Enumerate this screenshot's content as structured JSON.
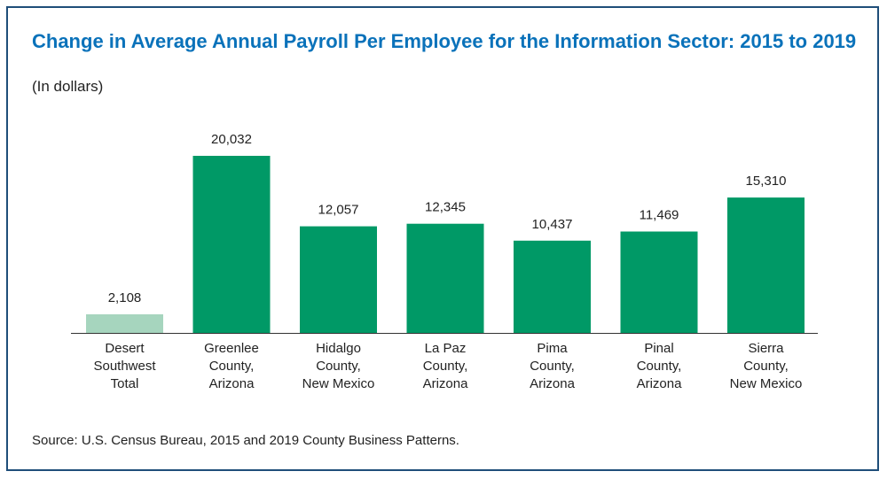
{
  "title": "Change in Average Annual Payroll Per Employee for the Information Sector: 2015 to 2019",
  "subtitle": "(In dollars)",
  "source": "Source: U.S. Census Bureau, 2015 and 2019 County Business Patterns.",
  "colors": {
    "highlight": "#a6d5be",
    "bar": "#009966",
    "title": "#0a72ba",
    "frame": "#1f4e79"
  },
  "chart_data": {
    "type": "bar",
    "categories": [
      [
        "Desert",
        "Southwest",
        "Total"
      ],
      [
        "Greenlee",
        "County,",
        "Arizona"
      ],
      [
        "Hidalgo",
        "County,",
        "New Mexico"
      ],
      [
        "La Paz",
        "County,",
        "Arizona"
      ],
      [
        "Pima",
        "County,",
        "Arizona"
      ],
      [
        "Pinal",
        "County,",
        "Arizona"
      ],
      [
        "Sierra",
        "County,",
        "New Mexico"
      ]
    ],
    "values": [
      2108,
      20032,
      12057,
      12345,
      10437,
      11469,
      15310
    ],
    "value_labels": [
      "2,108",
      "20,032",
      "12,057",
      "12,345",
      "10,437",
      "11,469",
      "15,310"
    ],
    "ylim": [
      0,
      20032
    ],
    "grid": false,
    "legend": "none"
  }
}
